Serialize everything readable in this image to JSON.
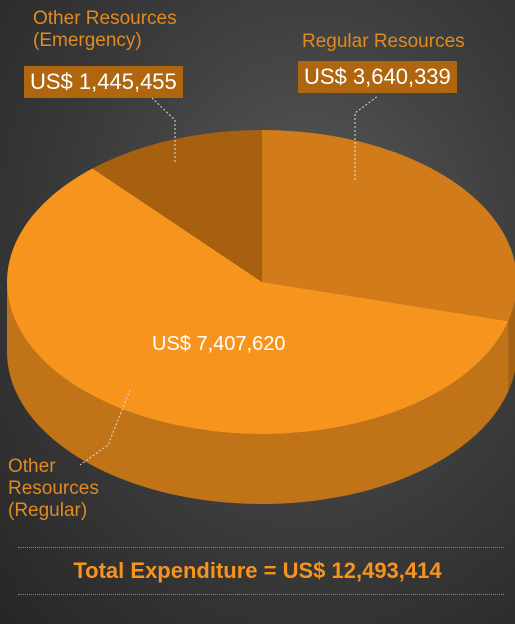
{
  "chart_data": {
    "type": "pie",
    "categories": [
      "Regular Resources",
      "Other Resources (Regular)",
      "Other Resources (Emergency)"
    ],
    "values": [
      3640339,
      7407620,
      1445455
    ],
    "value_labels": [
      "US$ 3,640,339",
      "US$ 7,407,620",
      "US$ 1,445,455"
    ],
    "colors": [
      "#d27b1a",
      "#f7941d",
      "#a6600f"
    ],
    "total_label": "Total Expenditure = US$ 12,493,414"
  }
}
